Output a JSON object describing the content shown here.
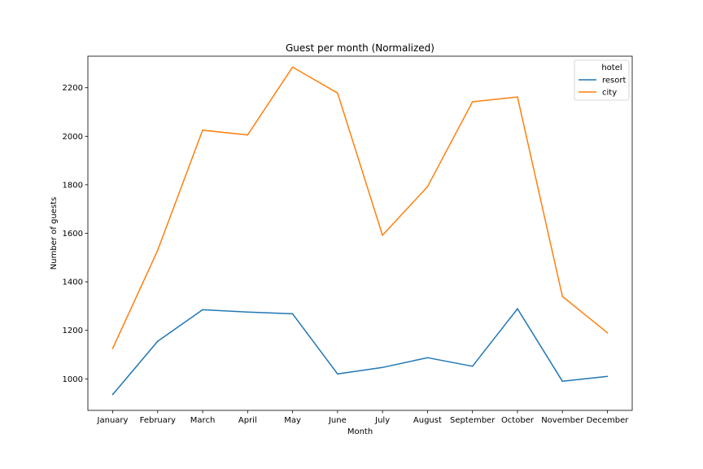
{
  "chart_data": {
    "type": "line",
    "title": "Guest per month (Normalized)",
    "xlabel": "Month",
    "ylabel": "Number of guests",
    "categories": [
      "January",
      "February",
      "March",
      "April",
      "May",
      "June",
      "July",
      "August",
      "September",
      "October",
      "November",
      "December"
    ],
    "ylim": [
      870,
      2330
    ],
    "yticks": [
      1000,
      1200,
      1400,
      1600,
      1800,
      2000,
      2200
    ],
    "grid": false,
    "legend": {
      "title": "hotel",
      "placement": "top-right"
    },
    "series": [
      {
        "name": "resort",
        "color": "#1f77b4",
        "values": [
          935,
          1155,
          1285,
          1275,
          1268,
          1020,
          1047,
          1087,
          1052,
          1289,
          990,
          1010
        ]
      },
      {
        "name": "city",
        "color": "#ff7f0e",
        "values": [
          1125,
          1530,
          2025,
          2005,
          2285,
          2178,
          1592,
          1792,
          2142,
          2162,
          1340,
          1190
        ]
      }
    ]
  }
}
